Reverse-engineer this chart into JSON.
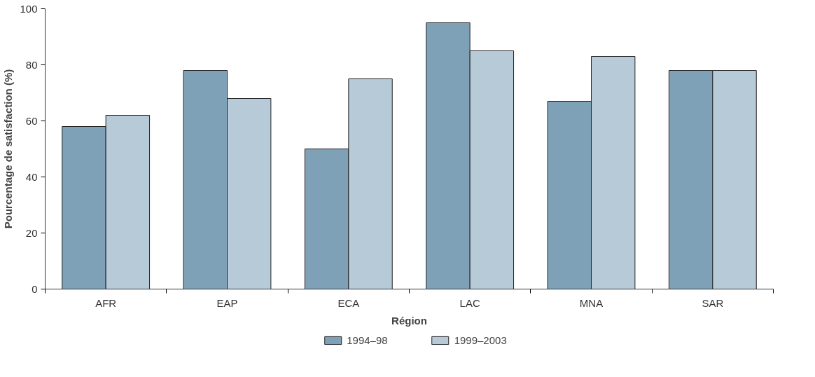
{
  "chart_data": {
    "type": "bar",
    "xlabel": "Région",
    "ylabel": "Pourcentage de satisfaction (%)",
    "categories": [
      "AFR",
      "EAP",
      "ECA",
      "LAC",
      "MNA",
      "SAR"
    ],
    "series": [
      {
        "name": "1994–98",
        "color": "#7fa1b8",
        "values": [
          58,
          78,
          50,
          95,
          67,
          78
        ]
      },
      {
        "name": "1999–2003",
        "color": "#b7cad8",
        "values": [
          62,
          68,
          75,
          85,
          83,
          78
        ]
      }
    ],
    "ylim": [
      0,
      100
    ],
    "yticks": [
      0,
      20,
      40,
      60,
      80,
      100
    ],
    "grid": false,
    "legend": "bottom"
  }
}
